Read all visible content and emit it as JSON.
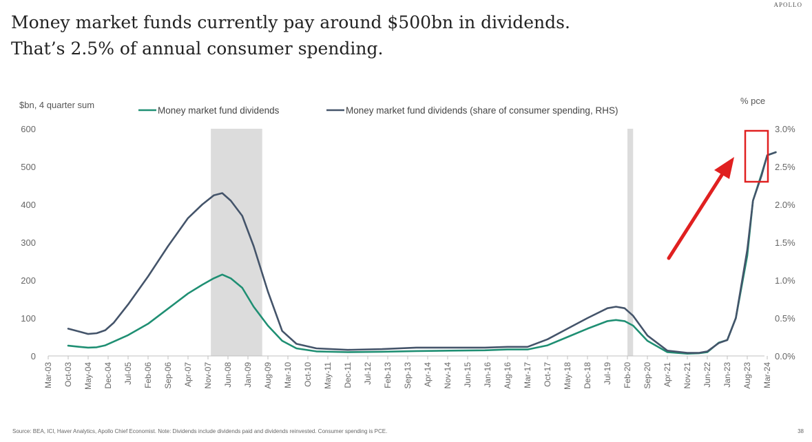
{
  "brand": "APOLLO",
  "title_lines": [
    "Money market funds currently pay around $500bn in dividends.",
    "That’s 2.5% of annual consumer spending."
  ],
  "source": "Source: BEA, ICI, Haver Analytics, Apollo Chief Economist. Note: Dividends include dividends paid and dividends reinvested. Consumer spending is PCE.",
  "page_number": "38",
  "colors": {
    "series1": "#1f8f73",
    "series2": "#44546a",
    "recession": "#dcdcdc",
    "annotation": "#e02020"
  },
  "chart_data": {
    "type": "line",
    "ylabel_left": "$bn, 4 quarter sum",
    "ylabel_right": "% pce",
    "ylim_left": [
      0,
      600
    ],
    "ylim_right": [
      0,
      3.0
    ],
    "yticks_left": [
      "0",
      "100",
      "200",
      "300",
      "400",
      "500",
      "600"
    ],
    "yticks_right": [
      "0.0%",
      "0.5%",
      "1.0%",
      "1.5%",
      "2.0%",
      "2.5%",
      "3.0%"
    ],
    "x_tick_labels": [
      "Mar-03",
      "Oct-03",
      "May-04",
      "Dec-04",
      "Jul-05",
      "Feb-06",
      "Sep-06",
      "Apr-07",
      "Nov-07",
      "Jun-08",
      "Jan-09",
      "Aug-09",
      "Mar-10",
      "Oct-10",
      "May-11",
      "Dec-11",
      "Jul-12",
      "Feb-13",
      "Sep-13",
      "Apr-14",
      "Nov-14",
      "Jun-15",
      "Jan-16",
      "Aug-16",
      "Mar-17",
      "Oct-17",
      "May-18",
      "Dec-18",
      "Jul-19",
      "Feb-20",
      "Sep-20",
      "Apr-21",
      "Nov-21",
      "Jun-22",
      "Jan-23",
      "Aug-23",
      "Mar-24"
    ],
    "recessions": [
      [
        "Dec-07",
        "Jun-09"
      ],
      [
        "Feb-20",
        "Apr-20"
      ]
    ],
    "legend_position": "top",
    "grid": false,
    "series": [
      {
        "name": "Money market fund dividends",
        "axis": "left",
        "points": [
          [
            "Oct-03",
            27
          ],
          [
            "Feb-04",
            24
          ],
          [
            "May-04",
            22
          ],
          [
            "Aug-04",
            23
          ],
          [
            "Nov-04",
            28
          ],
          [
            "Feb-05",
            38
          ],
          [
            "Jul-05",
            55
          ],
          [
            "Feb-06",
            85
          ],
          [
            "Sep-06",
            125
          ],
          [
            "Apr-07",
            165
          ],
          [
            "Sep-07",
            188
          ],
          [
            "Jan-08",
            205
          ],
          [
            "Apr-08",
            215
          ],
          [
            "Jul-08",
            205
          ],
          [
            "Nov-08",
            180
          ],
          [
            "Mar-09",
            130
          ],
          [
            "Aug-09",
            80
          ],
          [
            "Jan-10",
            40
          ],
          [
            "Jun-10",
            20
          ],
          [
            "Jan-11",
            12
          ],
          [
            "Dec-11",
            10
          ],
          [
            "Dec-12",
            11
          ],
          [
            "Dec-13",
            13
          ],
          [
            "Dec-14",
            14
          ],
          [
            "Dec-15",
            15
          ],
          [
            "Aug-16",
            17
          ],
          [
            "Mar-17",
            17
          ],
          [
            "Oct-17",
            28
          ],
          [
            "May-18",
            50
          ],
          [
            "Dec-18",
            72
          ],
          [
            "Jul-19",
            92
          ],
          [
            "Oct-19",
            95
          ],
          [
            "Jan-20",
            92
          ],
          [
            "Apr-20",
            80
          ],
          [
            "Sep-20",
            40
          ],
          [
            "Apr-21",
            10
          ],
          [
            "Nov-21",
            6
          ],
          [
            "Mar-22",
            7
          ],
          [
            "Jun-22",
            10
          ],
          [
            "Oct-22",
            35
          ],
          [
            "Jan-23",
            42
          ],
          [
            "Apr-23",
            100
          ],
          [
            "Aug-23",
            265
          ],
          [
            "Oct-23",
            410
          ],
          [
            "Jan-24",
            480
          ],
          [
            "Mar-24",
            530
          ],
          [
            "Jun-24",
            538
          ]
        ]
      },
      {
        "name": "Money market fund dividends (share of consumer spending, RHS)",
        "axis": "right",
        "points": [
          [
            "Oct-03",
            0.36
          ],
          [
            "Feb-04",
            0.32
          ],
          [
            "May-04",
            0.29
          ],
          [
            "Aug-04",
            0.3
          ],
          [
            "Nov-04",
            0.34
          ],
          [
            "Feb-05",
            0.44
          ],
          [
            "Jul-05",
            0.68
          ],
          [
            "Feb-06",
            1.05
          ],
          [
            "Sep-06",
            1.45
          ],
          [
            "Apr-07",
            1.82
          ],
          [
            "Sep-07",
            2.0
          ],
          [
            "Jan-08",
            2.12
          ],
          [
            "Apr-08",
            2.15
          ],
          [
            "Jul-08",
            2.05
          ],
          [
            "Nov-08",
            1.85
          ],
          [
            "Mar-09",
            1.45
          ],
          [
            "Aug-09",
            0.85
          ],
          [
            "Jan-10",
            0.33
          ],
          [
            "Jun-10",
            0.16
          ],
          [
            "Jan-11",
            0.1
          ],
          [
            "Dec-11",
            0.08
          ],
          [
            "Dec-12",
            0.09
          ],
          [
            "Dec-13",
            0.11
          ],
          [
            "Dec-14",
            0.11
          ],
          [
            "Dec-15",
            0.11
          ],
          [
            "Aug-16",
            0.12
          ],
          [
            "Mar-17",
            0.12
          ],
          [
            "Oct-17",
            0.22
          ],
          [
            "May-18",
            0.36
          ],
          [
            "Dec-18",
            0.5
          ],
          [
            "Jul-19",
            0.63
          ],
          [
            "Oct-19",
            0.65
          ],
          [
            "Jan-20",
            0.63
          ],
          [
            "Apr-20",
            0.53
          ],
          [
            "Sep-20",
            0.27
          ],
          [
            "Apr-21",
            0.07
          ],
          [
            "Nov-21",
            0.04
          ],
          [
            "Mar-22",
            0.04
          ],
          [
            "Jun-22",
            0.06
          ],
          [
            "Oct-22",
            0.17
          ],
          [
            "Jan-23",
            0.21
          ],
          [
            "Apr-23",
            0.5
          ],
          [
            "Aug-23",
            1.4
          ],
          [
            "Oct-23",
            2.05
          ],
          [
            "Jan-24",
            2.38
          ],
          [
            "Mar-24",
            2.65
          ],
          [
            "Jun-24",
            2.69
          ]
        ]
      }
    ]
  }
}
